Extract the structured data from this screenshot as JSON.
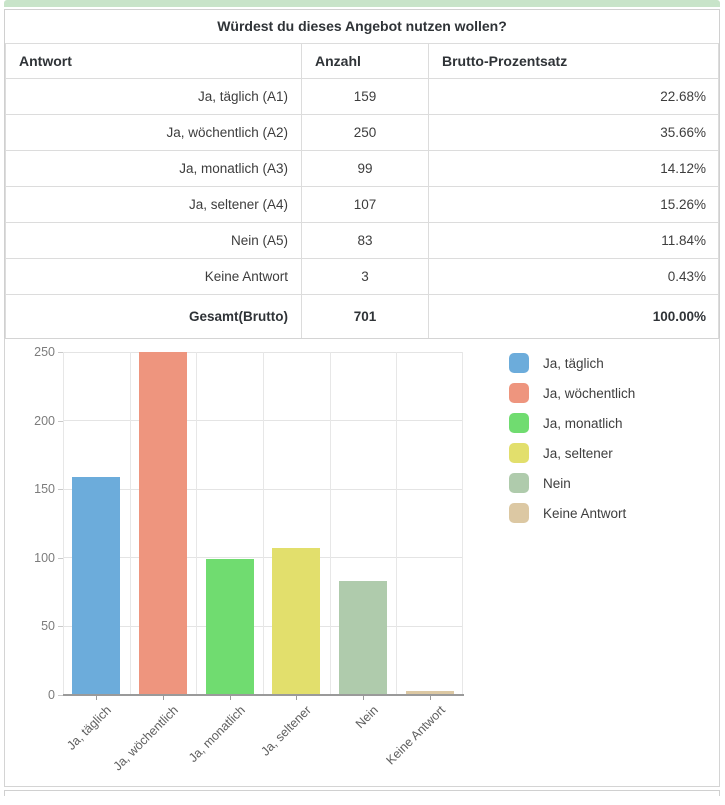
{
  "accent": {
    "top_bar_color": "#c8e4c9"
  },
  "survey_table": {
    "title": "Würdest du dieses Angebot nutzen wollen?",
    "columns": [
      "Antwort",
      "Anzahl",
      "Brutto-Prozentsatz"
    ],
    "rows": [
      {
        "answer": "Ja, täglich (A1)",
        "count": "159",
        "percent": "22.68%"
      },
      {
        "answer": "Ja, wöchentlich (A2)",
        "count": "250",
        "percent": "35.66%"
      },
      {
        "answer": "Ja, monatlich (A3)",
        "count": "99",
        "percent": "14.12%"
      },
      {
        "answer": "Ja, seltener (A4)",
        "count": "107",
        "percent": "15.26%"
      },
      {
        "answer": "Nein (A5)",
        "count": "83",
        "percent": "11.84%"
      },
      {
        "answer": "Keine Antwort",
        "count": "3",
        "percent": "0.43%"
      }
    ],
    "total": {
      "answer": "Gesamt(Brutto)",
      "count": "701",
      "percent": "100.00%"
    }
  },
  "chart_data": {
    "type": "bar",
    "title": "",
    "xlabel": "",
    "ylabel": "",
    "categories": [
      "Ja, täglich",
      "Ja, wöchentlich",
      "Ja, monatlich",
      "Ja, seltener",
      "Nein",
      "Keine Antwort"
    ],
    "values": [
      159,
      250,
      99,
      107,
      83,
      3
    ],
    "colors": [
      "#6cacdb",
      "#ee957e",
      "#70dc70",
      "#e2df6c",
      "#afcbac",
      "#dcc8a3"
    ],
    "ylim": [
      0,
      250
    ],
    "yticks": [
      0,
      50,
      100,
      150,
      200,
      250
    ],
    "grid": true,
    "legend_position": "right"
  }
}
